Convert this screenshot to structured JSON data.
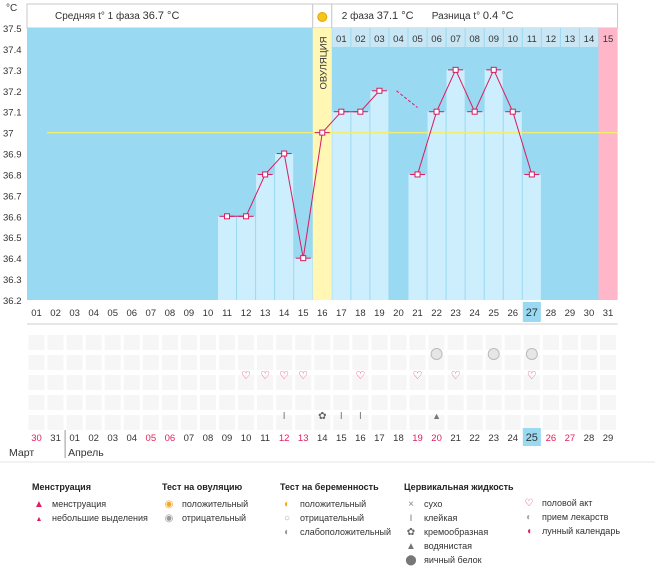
{
  "header": {
    "unit": "°C",
    "phase1_label": "Средняя t° 1 фаза",
    "phase1_value": "36.7 °C",
    "phase2_label": "2 фаза",
    "phase2_value": "37.1 °C",
    "diff_label": "Разница t°",
    "diff_value": "0.4 °C"
  },
  "chart_data": {
    "type": "line",
    "ylabel": "°C",
    "ylim": [
      36.2,
      37.5
    ],
    "yticks": [
      37.5,
      37.4,
      37.3,
      37.2,
      37.1,
      37.0,
      36.9,
      36.8,
      36.7,
      36.6,
      36.5,
      36.4,
      36.3,
      36.2
    ],
    "ytick_labels": [
      "37.5",
      "37.4",
      "37.3",
      "37.2",
      "37.1",
      "37",
      "36.9",
      "36.8",
      "36.7",
      "36.6",
      "36.5",
      "36.4",
      "36.3",
      "36.2"
    ],
    "coverline": 37.0,
    "ovulation_label": "ОВУЛЯЦИЯ",
    "ovulation_index": 15,
    "post_ovulation_days": [
      "01",
      "02",
      "03",
      "04",
      "05",
      "06",
      "07",
      "08",
      "09",
      "10",
      "11",
      "12",
      "13",
      "14",
      "15"
    ],
    "cycle_days": [
      "01",
      "02",
      "03",
      "04",
      "05",
      "06",
      "07",
      "08",
      "09",
      "10",
      "11",
      "12",
      "13",
      "14",
      "15",
      "16",
      "17",
      "18",
      "19",
      "20",
      "21",
      "22",
      "23",
      "24",
      "25",
      "26",
      "27",
      "28",
      "29",
      "30",
      "31"
    ],
    "today_index": 26,
    "temperatures": [
      null,
      null,
      null,
      null,
      null,
      null,
      null,
      null,
      null,
      null,
      36.6,
      36.6,
      36.8,
      36.9,
      36.4,
      37.0,
      37.1,
      37.1,
      37.2,
      null,
      36.8,
      37.1,
      37.3,
      37.1,
      37.3,
      37.1,
      36.8,
      null,
      null,
      null,
      null
    ],
    "dashed_segment": [
      {
        "from": 19,
        "to": 20,
        "start_value": 37.2,
        "end_value": 37.12
      }
    ],
    "series": [
      {
        "name": "Базальная температура",
        "color": "#d81b60"
      }
    ],
    "colors": {
      "sky": "#99d9f2",
      "bar": "#cdeefc",
      "ovulation": "#fff7b3",
      "coverline": "#f3ee6f",
      "final": "#ffb6c8",
      "header_cell": "#c8e6f4",
      "grid": "#e8e8e8",
      "today": "#99d9f2"
    }
  },
  "symbol_rows": {
    "pregnancy": [
      "",
      "",
      "",
      "",
      "",
      "",
      "",
      "",
      "",
      "",
      "",
      "",
      "",
      "",
      "",
      "",
      "",
      "",
      "",
      "",
      "",
      "faint",
      "",
      "",
      "faint",
      "",
      "faint",
      "",
      "",
      "",
      ""
    ],
    "intercourse": [
      "",
      "",
      "",
      "",
      "",
      "",
      "",
      "",
      "",
      "",
      "",
      "heart",
      "heart",
      "heart",
      "heart",
      "",
      "",
      "heart",
      "",
      "",
      "heart",
      "",
      "heart",
      "",
      "",
      "",
      "heart",
      "",
      "",
      "",
      ""
    ],
    "mucus": [
      "",
      "",
      "",
      "",
      "",
      "",
      "",
      "",
      "",
      "",
      "",
      "",
      "",
      "sticky",
      "",
      "creamy",
      "sticky",
      "sticky",
      "",
      "",
      "",
      "watery",
      "",
      "",
      "",
      "",
      "",
      "",
      "",
      "",
      ""
    ]
  },
  "calendar": {
    "dates": [
      "30",
      "31",
      "01",
      "02",
      "03",
      "04",
      "05",
      "06",
      "07",
      "08",
      "09",
      "10",
      "11",
      "12",
      "13",
      "14",
      "15",
      "16",
      "17",
      "18",
      "19",
      "20",
      "21",
      "22",
      "23",
      "24",
      "25",
      "26",
      "27",
      "28",
      "29"
    ],
    "red_indices": [
      0,
      6,
      7,
      13,
      14,
      20,
      21,
      27,
      28
    ],
    "month1": "Март",
    "month2": "Апрель"
  },
  "legend": {
    "menstruation": {
      "title": "Менструация",
      "items": [
        "менструация",
        "небольшие выделения"
      ]
    },
    "ovulation_test": {
      "title": "Тест на овуляцию",
      "items": [
        "положительный",
        "отрицательный"
      ]
    },
    "pregnancy_test": {
      "title": "Тест на беременность",
      "items": [
        "положительный",
        "отрицательный",
        "слабоположительный"
      ]
    },
    "cervical": {
      "title": "Цервикальная жидкость",
      "items": [
        "сухо",
        "клейкая",
        "кремообразная",
        "водянистая",
        "яичный белок"
      ]
    },
    "other": {
      "items": [
        "половой акт",
        "прием лекарств",
        "лунный календарь"
      ]
    }
  }
}
